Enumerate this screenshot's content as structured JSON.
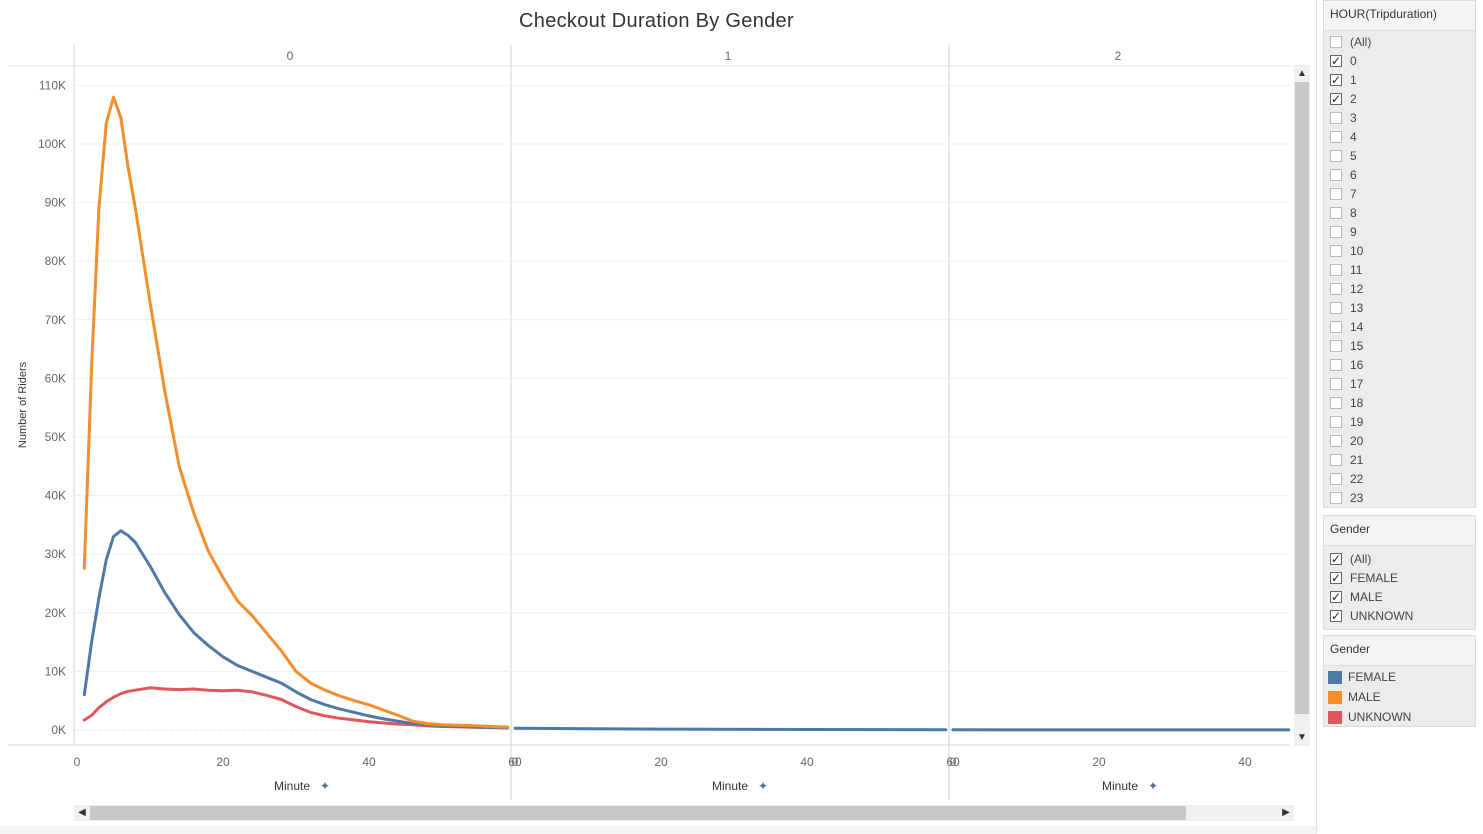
{
  "title": "Checkout Duration By Gender",
  "panes": [
    {
      "header": "0",
      "x_ticks": [
        "0",
        "20",
        "40",
        "60"
      ],
      "x_label": "Minute"
    },
    {
      "header": "1",
      "x_ticks": [
        "0",
        "20",
        "40",
        "60"
      ],
      "x_label": "Minute"
    },
    {
      "header": "2",
      "x_ticks": [
        "0",
        "20",
        "40"
      ],
      "x_label": "Minute"
    }
  ],
  "y_label": "Number of Riders",
  "y_ticks": [
    "0K",
    "10K",
    "20K",
    "30K",
    "40K",
    "50K",
    "60K",
    "70K",
    "80K",
    "90K",
    "100K",
    "110K"
  ],
  "colors": {
    "FEMALE": "#4e79a7",
    "MALE": "#f28e2b",
    "UNKNOWN": "#e15759"
  },
  "hour_filter": {
    "title": "HOUR(Tripduration)",
    "items": [
      {
        "label": "(All)",
        "checked": false
      },
      {
        "label": "0",
        "checked": true
      },
      {
        "label": "1",
        "checked": true
      },
      {
        "label": "2",
        "checked": true
      },
      {
        "label": "3",
        "checked": false
      },
      {
        "label": "4",
        "checked": false
      },
      {
        "label": "5",
        "checked": false
      },
      {
        "label": "6",
        "checked": false
      },
      {
        "label": "7",
        "checked": false
      },
      {
        "label": "8",
        "checked": false
      },
      {
        "label": "9",
        "checked": false
      },
      {
        "label": "10",
        "checked": false
      },
      {
        "label": "11",
        "checked": false
      },
      {
        "label": "12",
        "checked": false
      },
      {
        "label": "13",
        "checked": false
      },
      {
        "label": "14",
        "checked": false
      },
      {
        "label": "15",
        "checked": false
      },
      {
        "label": "16",
        "checked": false
      },
      {
        "label": "17",
        "checked": false
      },
      {
        "label": "18",
        "checked": false
      },
      {
        "label": "19",
        "checked": false
      },
      {
        "label": "20",
        "checked": false
      },
      {
        "label": "21",
        "checked": false
      },
      {
        "label": "22",
        "checked": false
      },
      {
        "label": "23",
        "checked": false
      }
    ]
  },
  "gender_filter": {
    "title": "Gender",
    "items": [
      {
        "label": "(All)",
        "checked": true
      },
      {
        "label": "FEMALE",
        "checked": true
      },
      {
        "label": "MALE",
        "checked": true
      },
      {
        "label": "UNKNOWN",
        "checked": true
      }
    ]
  },
  "gender_legend": {
    "title": "Gender",
    "items": [
      {
        "label": "FEMALE",
        "color": "#4e79a7"
      },
      {
        "label": "MALE",
        "color": "#f28e2b"
      },
      {
        "label": "UNKNOWN",
        "color": "#e15759"
      }
    ]
  },
  "chart_data": {
    "type": "line",
    "title": "Checkout Duration By Gender",
    "xlabel": "Minute",
    "ylabel": "Number of Riders",
    "ylim": [
      0,
      110000
    ],
    "grid": true,
    "legend_placement": "right",
    "panes": [
      {
        "hour": "0",
        "xlim": [
          0,
          60
        ],
        "series": [
          {
            "name": "MALE",
            "x": [
              1,
              2,
              3,
              4,
              5,
              6,
              7,
              8,
              10,
              12,
              14,
              16,
              18,
              20,
              22,
              24,
              26,
              28,
              30,
              32,
              34,
              36,
              38,
              40,
              42,
              44,
              46,
              48,
              50,
              55,
              59
            ],
            "values": [
              27600,
              62000,
              89000,
              103500,
              108000,
              104500,
              96000,
              89000,
              73000,
              58000,
              45000,
              37000,
              30500,
              26000,
              22000,
              19500,
              16500,
              13500,
              10000,
              8000,
              6800,
              5800,
              5000,
              4300,
              3400,
              2500,
              1500,
              1100,
              900,
              700,
              500
            ]
          },
          {
            "name": "FEMALE",
            "x": [
              1,
              2,
              3,
              4,
              5,
              6,
              7,
              8,
              10,
              12,
              14,
              16,
              18,
              20,
              22,
              24,
              26,
              28,
              30,
              32,
              34,
              36,
              38,
              40,
              42,
              44,
              46,
              48,
              50,
              55,
              59
            ],
            "values": [
              6000,
              15000,
              22500,
              29000,
              33000,
              34000,
              33200,
              32000,
              28000,
              23500,
              19700,
              16600,
              14400,
              12500,
              11000,
              10000,
              9000,
              8000,
              6500,
              5200,
              4300,
              3600,
              3000,
              2400,
              1900,
              1500,
              1100,
              900,
              700,
              500,
              400
            ]
          },
          {
            "name": "UNKNOWN",
            "x": [
              1,
              2,
              3,
              4,
              5,
              6,
              7,
              8,
              10,
              12,
              14,
              16,
              18,
              20,
              22,
              24,
              26,
              28,
              30,
              32,
              34,
              36,
              38,
              40,
              42,
              44,
              46,
              48,
              50,
              55,
              59
            ],
            "values": [
              1700,
              2500,
              3800,
              4800,
              5600,
              6200,
              6600,
              6800,
              7200,
              7000,
              6900,
              7000,
              6800,
              6700,
              6800,
              6500,
              5900,
              5200,
              4000,
              3000,
              2400,
              2000,
              1700,
              1400,
              1200,
              1000,
              900,
              700,
              600,
              450,
              350
            ]
          }
        ]
      },
      {
        "hour": "1",
        "xlim": [
          0,
          60
        ],
        "series": [
          {
            "name": "FEMALE",
            "x": [
              0,
              20,
              40,
              59
            ],
            "values": [
              300,
              150,
              80,
              50
            ]
          }
        ]
      },
      {
        "hour": "2",
        "xlim": [
          0,
          60
        ],
        "series": [
          {
            "name": "FEMALE",
            "x": [
              0,
              20,
              40,
              46
            ],
            "values": [
              30,
              20,
              10,
              10
            ]
          }
        ]
      }
    ]
  }
}
